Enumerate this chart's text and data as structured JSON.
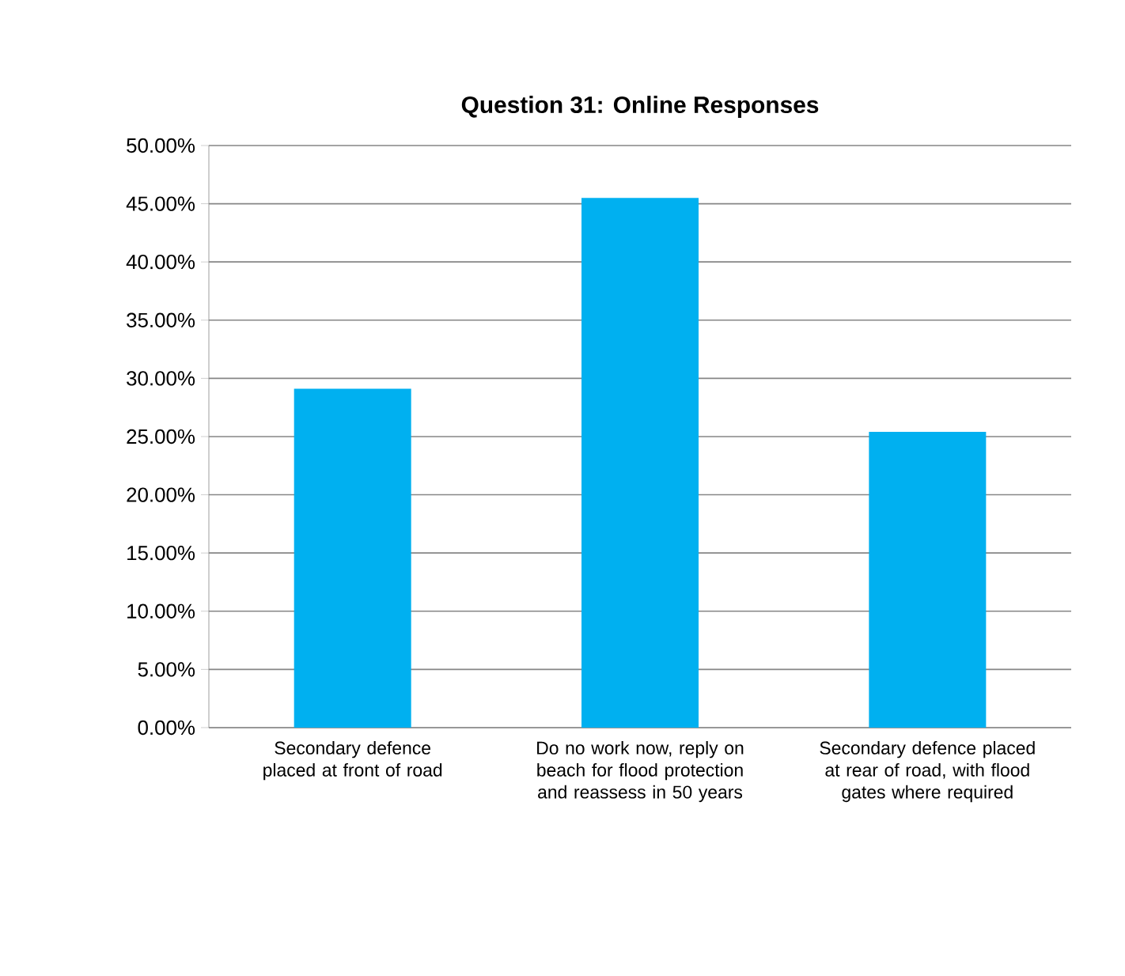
{
  "chart_data": {
    "type": "bar",
    "title": "Question 31: Online Responses",
    "categories": [
      "Secondary defence placed at front of road",
      "Do no work now, reply on beach for flood protection and reassess in 50 years",
      "Secondary defence placed at rear of road, with flood gates where required"
    ],
    "values": [
      29.1,
      45.5,
      25.4
    ],
    "color": "#00b0f0",
    "ylim": [
      0,
      50
    ],
    "yticks": [
      {
        "value": 0,
        "label": "0.00%"
      },
      {
        "value": 5,
        "label": "5.00%"
      },
      {
        "value": 10,
        "label": "10.00%"
      },
      {
        "value": 15,
        "label": "15.00%"
      },
      {
        "value": 20,
        "label": "20.00%"
      },
      {
        "value": 25,
        "label": "25.00%"
      },
      {
        "value": 30,
        "label": "30.00%"
      },
      {
        "value": 35,
        "label": "35.00%"
      },
      {
        "value": 40,
        "label": "40.00%"
      },
      {
        "value": 45,
        "label": "45.00%"
      },
      {
        "value": 50,
        "label": "50.00%"
      }
    ],
    "grid": "y"
  }
}
